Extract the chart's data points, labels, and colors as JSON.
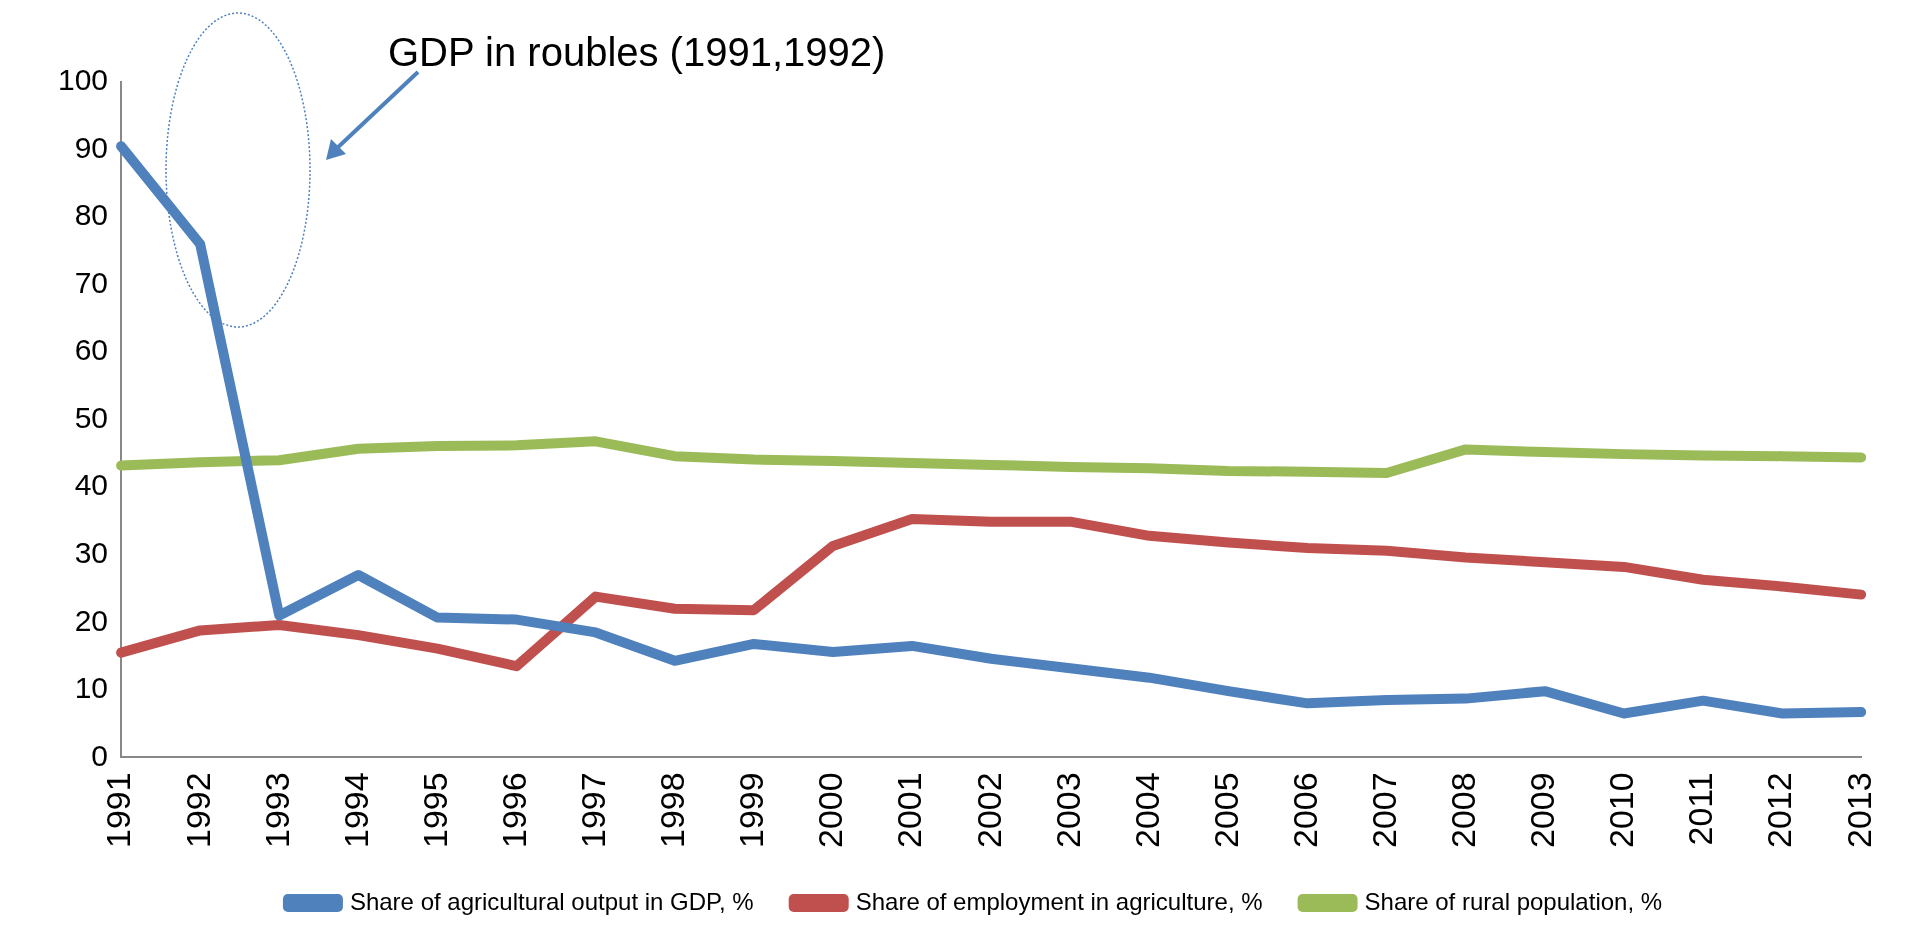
{
  "chart_data": {
    "type": "line",
    "annotations": [
      "GDP in roubles (1991,1992)"
    ],
    "categories": [
      "1991",
      "1992",
      "1993",
      "1994",
      "1995",
      "1996",
      "1997",
      "1998",
      "1999",
      "2000",
      "2001",
      "2002",
      "2003",
      "2004",
      "2005",
      "2006",
      "2007",
      "2008",
      "2009",
      "2010",
      "2011",
      "2012",
      "2013"
    ],
    "series": [
      {
        "name": "Share of agricultural output in GDP, %",
        "color": "#4f81bd",
        "values": [
          90.5,
          76,
          21,
          27,
          20.7,
          20.4,
          18.5,
          14.3,
          16.8,
          15.6,
          16.5,
          14.6,
          13.2,
          11.8,
          9.8,
          8,
          8.5,
          8.7,
          9.8,
          6.5,
          8.4,
          6.5,
          6.7
        ]
      },
      {
        "name": "Share of employment in agriculture, %",
        "color": "#c0504d",
        "values": [
          15.5,
          18.8,
          19.6,
          18.1,
          16.1,
          13.5,
          23.8,
          22,
          21.8,
          31.3,
          35.3,
          34.9,
          34.9,
          32.8,
          31.8,
          31,
          30.6,
          29.6,
          28.9,
          28.2,
          26.3,
          25.3,
          24.1
        ]
      },
      {
        "name": "Share of rural population, %",
        "color": "#9bbb59",
        "values": [
          43.2,
          43.7,
          44,
          45.7,
          46.1,
          46.2,
          46.8,
          44.6,
          44.1,
          43.9,
          43.6,
          43.3,
          43,
          42.8,
          42.4,
          42.3,
          42.1,
          45.6,
          45.2,
          44.9,
          44.7,
          44.6,
          44.4
        ]
      }
    ],
    "ylim": [
      0,
      100
    ],
    "yticks": [
      0,
      10,
      20,
      30,
      40,
      50,
      60,
      70,
      80,
      90,
      100
    ],
    "grid": false,
    "legend": "bottom",
    "marker": "none",
    "line_style": "solid"
  }
}
